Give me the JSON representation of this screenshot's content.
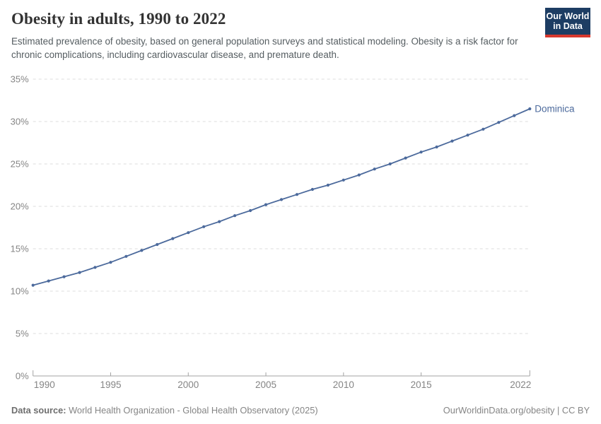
{
  "header": {
    "title": "Obesity in adults, 1990 to 2022",
    "subtitle": "Estimated prevalence of obesity, based on general population surveys and statistical modeling. Obesity is a risk factor for chronic complications, including cardiovascular disease, and premature death.",
    "logo": {
      "line1": "Our World",
      "line2": "in Data",
      "bg_color": "#1d3d63",
      "stripe_color": "#d7382e"
    }
  },
  "chart_data": {
    "type": "line",
    "title": "Obesity in adults, 1990 to 2022",
    "xlabel": "",
    "ylabel": "",
    "xlim": [
      1990,
      2022
    ],
    "ylim": [
      0,
      35
    ],
    "grid": "horizontal-dashed",
    "legend_position": "end-of-line",
    "x_ticks": [
      1990,
      1995,
      2000,
      2005,
      2010,
      2015,
      2022
    ],
    "y_ticks": [
      0,
      5,
      10,
      15,
      20,
      25,
      30,
      35
    ],
    "y_tick_suffix": "%",
    "series": [
      {
        "name": "Dominica",
        "color": "#4c6a9c",
        "x": [
          1990,
          1991,
          1992,
          1993,
          1994,
          1995,
          1996,
          1997,
          1998,
          1999,
          2000,
          2001,
          2002,
          2003,
          2004,
          2005,
          2006,
          2007,
          2008,
          2009,
          2010,
          2011,
          2012,
          2013,
          2014,
          2015,
          2016,
          2017,
          2018,
          2019,
          2020,
          2021,
          2022
        ],
        "values": [
          10.7,
          11.2,
          11.7,
          12.2,
          12.8,
          13.4,
          14.1,
          14.8,
          15.5,
          16.2,
          16.9,
          17.6,
          18.2,
          18.9,
          19.5,
          20.2,
          20.8,
          21.4,
          22.0,
          22.5,
          23.1,
          23.7,
          24.4,
          25.0,
          25.7,
          26.4,
          27.0,
          27.7,
          28.4,
          29.1,
          29.9,
          30.7,
          31.5
        ]
      }
    ],
    "colors": {
      "gridline": "#dcdcdc",
      "axis_line": "#a3a3a3",
      "tick_label": "#858585"
    }
  },
  "footer": {
    "datasource_label": "Data source:",
    "datasource_text": " World Health Organization - Global Health Observatory (2025)",
    "rights": "OurWorldinData.org/obesity | CC BY"
  }
}
